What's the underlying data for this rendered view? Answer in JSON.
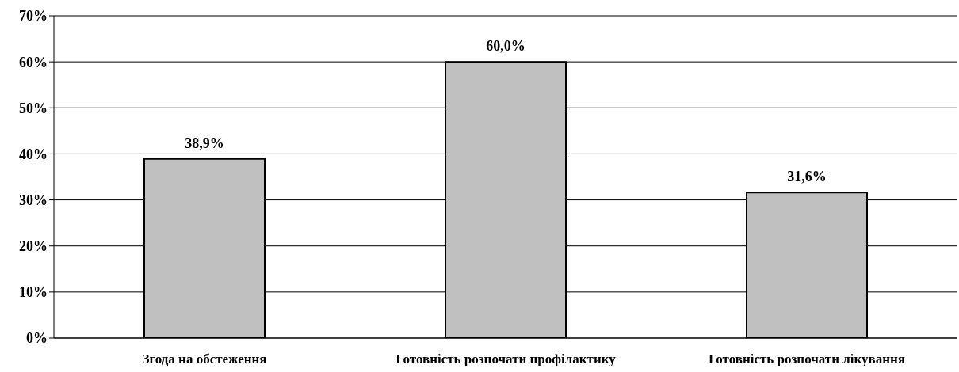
{
  "chart_data": {
    "type": "bar",
    "categories": [
      "Згода на обстеження",
      "Готовність розпочати профілактику",
      "Готовність розпочати лікування"
    ],
    "values": [
      38.9,
      60.0,
      31.6
    ],
    "value_labels": [
      "38,9%",
      "60,0%",
      "31,6%"
    ],
    "color": "#c0c0c0",
    "ylim": [
      0,
      70
    ],
    "yticks": [
      {
        "value": 0,
        "label": "0%"
      },
      {
        "value": 10,
        "label": "10%"
      },
      {
        "value": 20,
        "label": "20%"
      },
      {
        "value": 30,
        "label": "30%"
      },
      {
        "value": 40,
        "label": "40%"
      },
      {
        "value": 50,
        "label": "50%"
      },
      {
        "value": 60,
        "label": "60%"
      },
      {
        "value": 70,
        "label": "70%"
      }
    ],
    "grid": "y"
  }
}
